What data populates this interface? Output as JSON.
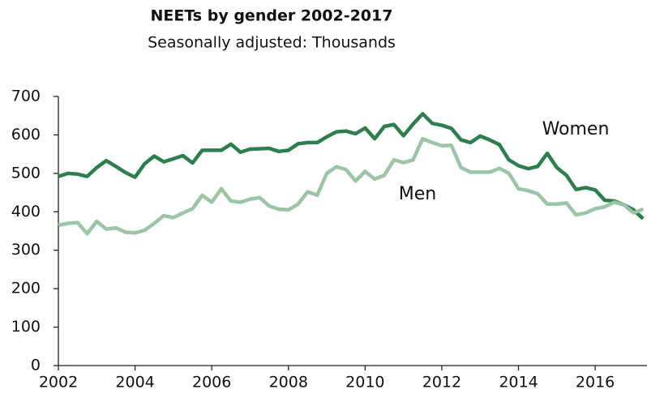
{
  "chart_data": {
    "type": "line",
    "title": "NEETs by gender 2002-2017",
    "subtitle": "Seasonally adjusted: Thousands",
    "x": [
      2002,
      2002.25,
      2002.5,
      2002.75,
      2003,
      2003.25,
      2003.5,
      2003.75,
      2004,
      2004.25,
      2004.5,
      2004.75,
      2005,
      2005.25,
      2005.5,
      2005.75,
      2006,
      2006.25,
      2006.5,
      2006.75,
      2007,
      2007.25,
      2007.5,
      2007.75,
      2008,
      2008.25,
      2008.5,
      2008.75,
      2009,
      2009.25,
      2009.5,
      2009.75,
      2010,
      2010.25,
      2010.5,
      2010.75,
      2011,
      2011.25,
      2011.5,
      2011.75,
      2012,
      2012.25,
      2012.5,
      2012.75,
      2013,
      2013.25,
      2013.5,
      2013.75,
      2014,
      2014.25,
      2014.5,
      2014.75,
      2015,
      2015.25,
      2015.5,
      2015.75,
      2016,
      2016.25,
      2016.5,
      2016.75,
      2017,
      2017.25
    ],
    "series": [
      {
        "name": "Women",
        "color": "#2e7d4f",
        "values": [
          492,
          500,
          498,
          492,
          515,
          533,
          518,
          502,
          490,
          525,
          545,
          530,
          538,
          546,
          527,
          560,
          560,
          560,
          576,
          555,
          563,
          564,
          565,
          557,
          560,
          577,
          580,
          580,
          595,
          608,
          610,
          603,
          618,
          590,
          622,
          627,
          598,
          628,
          655,
          630,
          625,
          617,
          587,
          580,
          597,
          587,
          575,
          535,
          520,
          512,
          518,
          552,
          515,
          495,
          458,
          463,
          457,
          430,
          428,
          418,
          405,
          382
        ]
      },
      {
        "name": "Men",
        "color": "#9cc5a6",
        "values": [
          365,
          370,
          372,
          343,
          375,
          355,
          358,
          347,
          345,
          352,
          370,
          390,
          385,
          397,
          408,
          443,
          425,
          460,
          428,
          425,
          433,
          437,
          415,
          407,
          405,
          420,
          452,
          443,
          500,
          517,
          510,
          480,
          505,
          485,
          495,
          535,
          528,
          535,
          590,
          580,
          572,
          573,
          515,
          503,
          503,
          503,
          513,
          500,
          460,
          455,
          447,
          420,
          420,
          423,
          392,
          397,
          408,
          413,
          425,
          418,
          397,
          407
        ]
      }
    ],
    "xlim": [
      2002,
      2017.33
    ],
    "xticks": [
      2002,
      2004,
      2006,
      2008,
      2010,
      2012,
      2014,
      2016
    ],
    "ylim": [
      0,
      700
    ],
    "yticks": [
      0,
      100,
      200,
      300,
      400,
      500,
      600,
      700
    ],
    "grid": false
  }
}
